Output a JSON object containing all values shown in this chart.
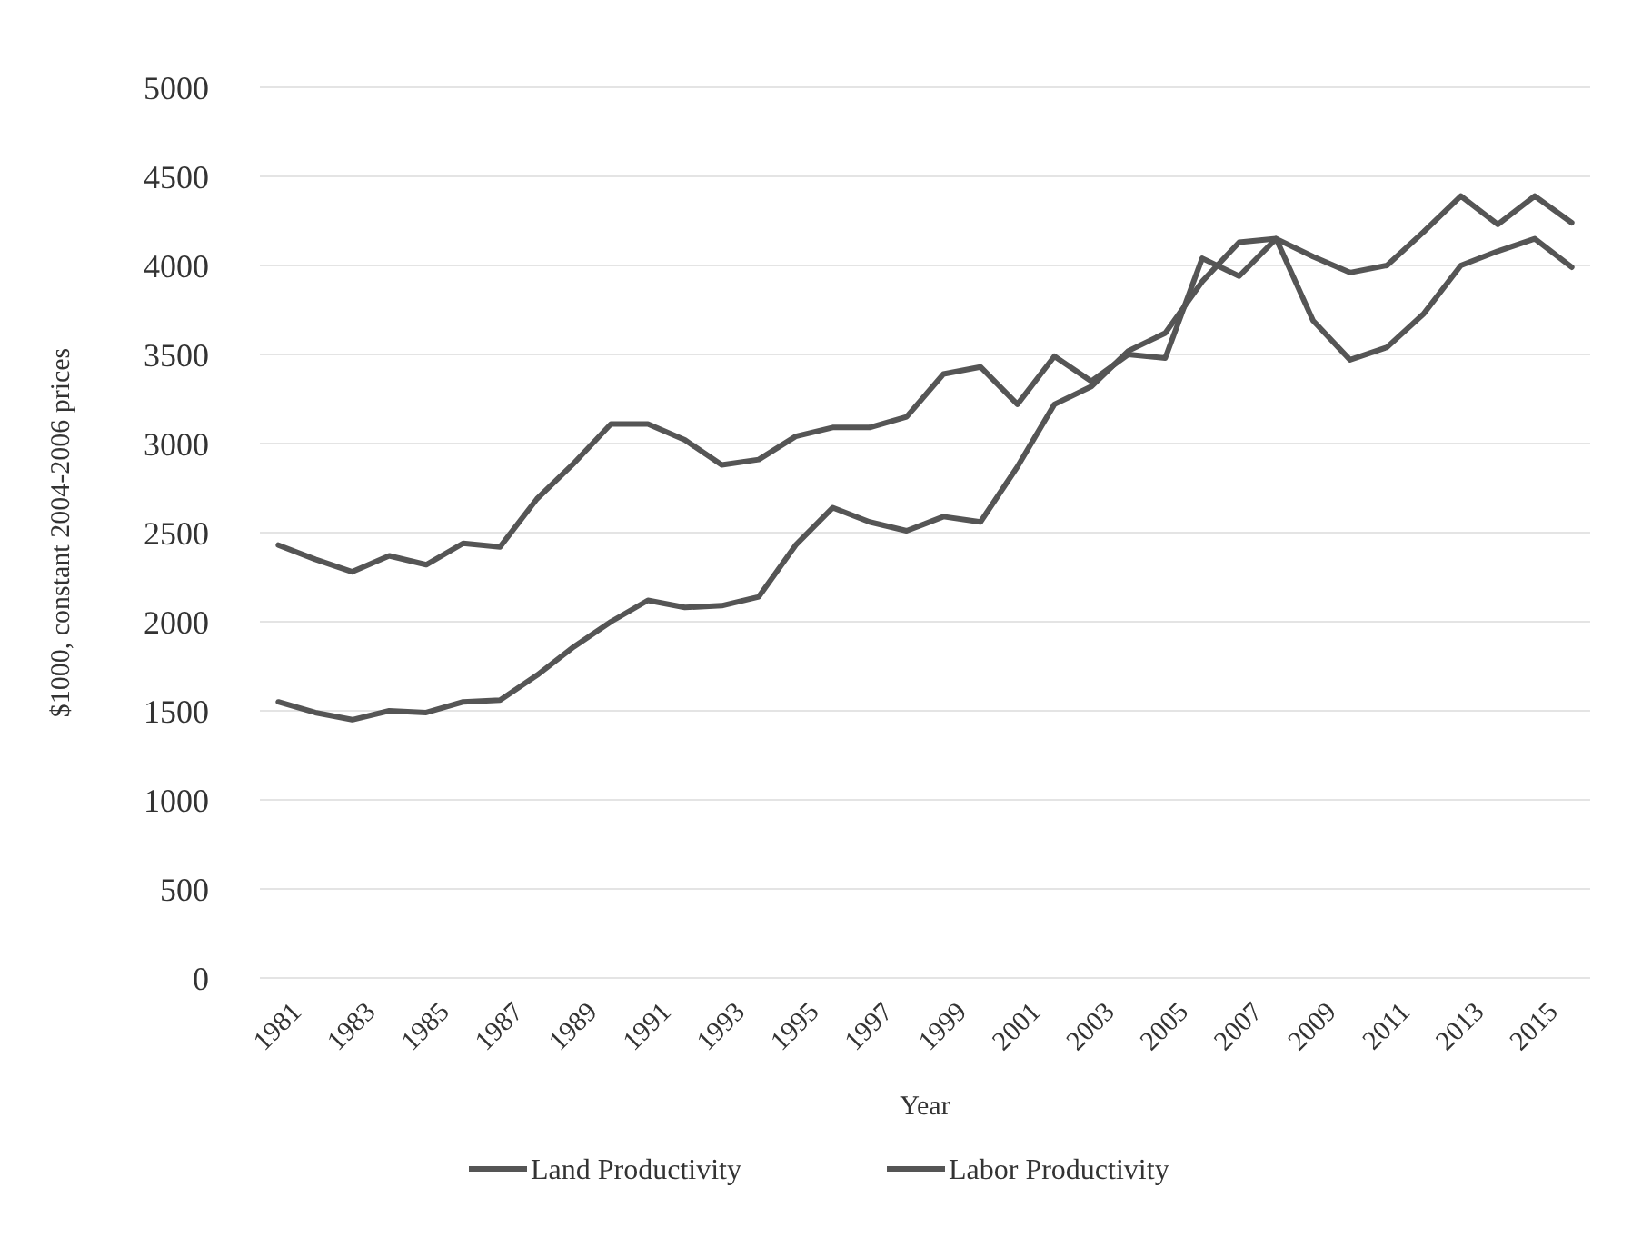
{
  "chart_data": {
    "type": "line",
    "xlabel": "Year",
    "ylabel": "$1000, constant  2004-2006 prices",
    "x": [
      1981,
      1982,
      1983,
      1984,
      1985,
      1986,
      1987,
      1988,
      1989,
      1990,
      1991,
      1992,
      1993,
      1994,
      1995,
      1996,
      1997,
      1998,
      1999,
      2000,
      2001,
      2002,
      2003,
      2004,
      2005,
      2006,
      2007,
      2008,
      2009,
      2010,
      2011,
      2012,
      2013,
      2014,
      2015,
      2016
    ],
    "series": [
      {
        "name": "Land Productivity",
        "color": "#555555",
        "values": [
          2430,
          2350,
          2280,
          2370,
          2320,
          2440,
          2420,
          2690,
          2890,
          3110,
          3110,
          3020,
          2880,
          2910,
          3040,
          3090,
          3090,
          3150,
          3390,
          3430,
          3220,
          3490,
          3350,
          3500,
          3480,
          4040,
          3940,
          4150,
          4050,
          3960,
          4000,
          4190,
          4390,
          4230,
          4390,
          4240
        ]
      },
      {
        "name": "Labor Productivity",
        "color": "#555555",
        "values": [
          1550,
          1490,
          1450,
          1500,
          1490,
          1550,
          1560,
          1700,
          1860,
          2000,
          2120,
          2080,
          2090,
          2140,
          2430,
          2640,
          2560,
          2510,
          2590,
          2560,
          2870,
          3220,
          3320,
          3520,
          3620,
          3910,
          4130,
          4150,
          3690,
          3470,
          3540,
          3730,
          4000,
          4080,
          4150,
          3990
        ]
      }
    ],
    "xlim": [
      1980.5,
      2016.5
    ],
    "xticks": [
      1981,
      1983,
      1985,
      1987,
      1989,
      1991,
      1993,
      1995,
      1997,
      1999,
      2001,
      2003,
      2005,
      2007,
      2009,
      2011,
      2013,
      2015
    ],
    "ylim": [
      0,
      5000
    ],
    "yticks": [
      0,
      500,
      1000,
      1500,
      2000,
      2500,
      3000,
      3500,
      4000,
      4500,
      5000
    ],
    "grid": "y",
    "legend": "bottom",
    "line_style": "solid",
    "marker": "none"
  }
}
